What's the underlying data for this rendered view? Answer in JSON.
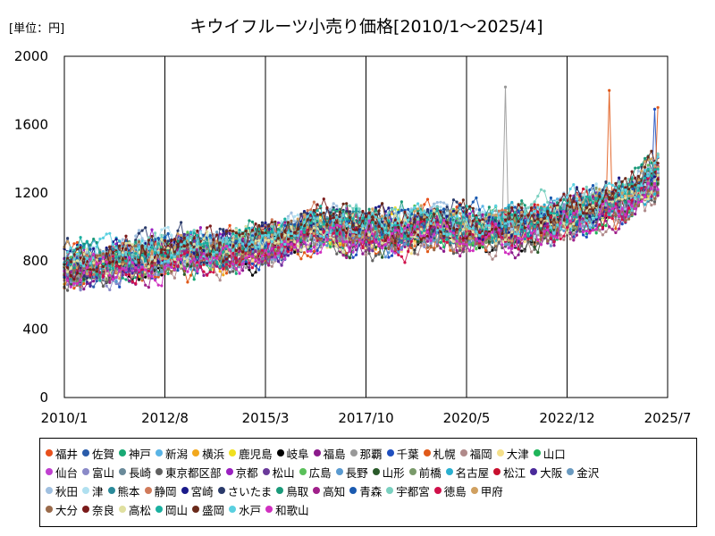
{
  "chart_data": {
    "type": "line",
    "title": "キウイフルーツ小売り価格[2010/1～2025/4]",
    "unit_label": "[単位：円]",
    "xlabel": "",
    "ylabel": "",
    "x_range": [
      "2010-01",
      "2025-07"
    ],
    "x_ticks": [
      "2010/1",
      "2012/8",
      "2015/3",
      "2017/10",
      "2020/5",
      "2022/12",
      "2025/7"
    ],
    "ylim": [
      0,
      2000
    ],
    "y_ticks": [
      0,
      400,
      800,
      1200,
      1600,
      2000
    ],
    "grid": "vertical",
    "legend_position": "bottom",
    "period": {
      "start": "2010-01",
      "end": "2025-04"
    },
    "mean_trend": [
      {
        "date": "2010-01",
        "value": 760
      },
      {
        "date": "2012-01",
        "value": 820
      },
      {
        "date": "2014-01",
        "value": 860
      },
      {
        "date": "2015-06",
        "value": 900
      },
      {
        "date": "2016-06",
        "value": 1000
      },
      {
        "date": "2017-06",
        "value": 980
      },
      {
        "date": "2018-06",
        "value": 960
      },
      {
        "date": "2019-06",
        "value": 1010
      },
      {
        "date": "2020-06",
        "value": 980
      },
      {
        "date": "2021-06",
        "value": 1000
      },
      {
        "date": "2022-06",
        "value": 1020
      },
      {
        "date": "2023-06",
        "value": 1100
      },
      {
        "date": "2024-06",
        "value": 1150
      },
      {
        "date": "2025-04",
        "value": 1300
      }
    ],
    "peaks": [
      {
        "series": "那覇",
        "date": "2021-05",
        "value": 1820
      },
      {
        "series": "札幌",
        "date": "2024-01",
        "value": 1800
      },
      {
        "series": "札幌",
        "date": "2025-04",
        "value": 1700
      },
      {
        "series": "千葉",
        "date": "2025-03",
        "value": 1690
      }
    ],
    "series": [
      {
        "name": "福井",
        "color": "#e8501c"
      },
      {
        "name": "佐賀",
        "color": "#2a5caa"
      },
      {
        "name": "神戸",
        "color": "#19a974"
      },
      {
        "name": "新潟",
        "color": "#5ab4e5"
      },
      {
        "name": "横浜",
        "color": "#f2a81d"
      },
      {
        "name": "鹿児島",
        "color": "#f0e020"
      },
      {
        "name": "岐阜",
        "color": "#000000"
      },
      {
        "name": "福島",
        "color": "#8b1a8b"
      },
      {
        "name": "那覇",
        "color": "#999999"
      },
      {
        "name": "千葉",
        "color": "#1f4fbf"
      },
      {
        "name": "札幌",
        "color": "#e05a1a"
      },
      {
        "name": "福岡",
        "color": "#b08a8a"
      },
      {
        "name": "大津",
        "color": "#f5e08a"
      },
      {
        "name": "山口",
        "color": "#1fb55a"
      },
      {
        "name": "仙台",
        "color": "#c040d0"
      },
      {
        "name": "富山",
        "color": "#8a8ac8"
      },
      {
        "name": "長崎",
        "color": "#6a8a9a"
      },
      {
        "name": "東京都区部",
        "color": "#606060"
      },
      {
        "name": "京都",
        "color": "#9a20c0"
      },
      {
        "name": "松山",
        "color": "#6a3a9a"
      },
      {
        "name": "広島",
        "color": "#5ac05a"
      },
      {
        "name": "長野",
        "color": "#5a9ad0"
      },
      {
        "name": "山形",
        "color": "#2a5a2a"
      },
      {
        "name": "前橋",
        "color": "#7a9a6a"
      },
      {
        "name": "名古屋",
        "color": "#2ab0d0"
      },
      {
        "name": "松江",
        "color": "#c8102e"
      },
      {
        "name": "大阪",
        "color": "#4a2a9a"
      },
      {
        "name": "金沢",
        "color": "#6a9ac0"
      },
      {
        "name": "秋田",
        "color": "#a0c0e0"
      },
      {
        "name": "津",
        "color": "#b0e0f0"
      },
      {
        "name": "熊本",
        "color": "#2a8a9a"
      },
      {
        "name": "静岡",
        "color": "#d07a5a"
      },
      {
        "name": "宮崎",
        "color": "#1a1a8a"
      },
      {
        "name": "さいたま",
        "color": "#2a3a6a"
      },
      {
        "name": "鳥取",
        "color": "#1a9a7a"
      },
      {
        "name": "高知",
        "color": "#a0208a"
      },
      {
        "name": "青森",
        "color": "#1a5ab0"
      },
      {
        "name": "宇都宮",
        "color": "#7ad0c0"
      },
      {
        "name": "徳島",
        "color": "#d0104a"
      },
      {
        "name": "甲府",
        "color": "#d0a060"
      },
      {
        "name": "大分",
        "color": "#9a6a4a"
      },
      {
        "name": "奈良",
        "color": "#7a1a1a"
      },
      {
        "name": "高松",
        "color": "#e0e0a0"
      },
      {
        "name": "岡山",
        "color": "#1ab0a0"
      },
      {
        "name": "盛岡",
        "color": "#6a2a1a"
      },
      {
        "name": "水戸",
        "color": "#5ad0e0"
      },
      {
        "name": "和歌山",
        "color": "#d030c0"
      }
    ]
  }
}
